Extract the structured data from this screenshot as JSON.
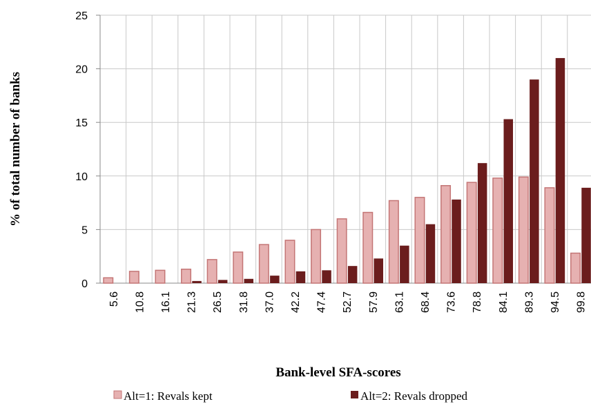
{
  "chart_data": {
    "type": "bar",
    "xlabel": "Bank-level SFA-scores",
    "ylabel": "% of total number of banks",
    "categories": [
      "5.6",
      "10.8",
      "16.1",
      "21.3",
      "26.5",
      "31.8",
      "37.0",
      "42.2",
      "47.4",
      "52.7",
      "57.9",
      "63.1",
      "68.4",
      "73.6",
      "78.8",
      "84.1",
      "89.3",
      "94.5",
      "99.8"
    ],
    "series": [
      {
        "name": "Alt=1: Revals kept",
        "color": "#e6b1b1",
        "values": [
          0.5,
          1.1,
          1.2,
          1.3,
          2.2,
          2.9,
          3.6,
          4.0,
          5.0,
          6.0,
          6.6,
          7.7,
          8.0,
          9.1,
          9.4,
          9.8,
          9.9,
          8.9,
          2.8
        ]
      },
      {
        "name": "Alt=2: Revals dropped",
        "color": "#6b1d1d",
        "values": [
          0,
          0,
          0,
          0.2,
          0.3,
          0.4,
          0.7,
          1.1,
          1.2,
          1.6,
          2.3,
          3.5,
          5.5,
          7.8,
          11.2,
          15.3,
          19.0,
          21.0,
          8.9
        ]
      }
    ],
    "ylim": [
      0,
      25
    ],
    "yticks": [
      0,
      5,
      10,
      15,
      20,
      25
    ],
    "grid": true,
    "legend": "bottom"
  }
}
